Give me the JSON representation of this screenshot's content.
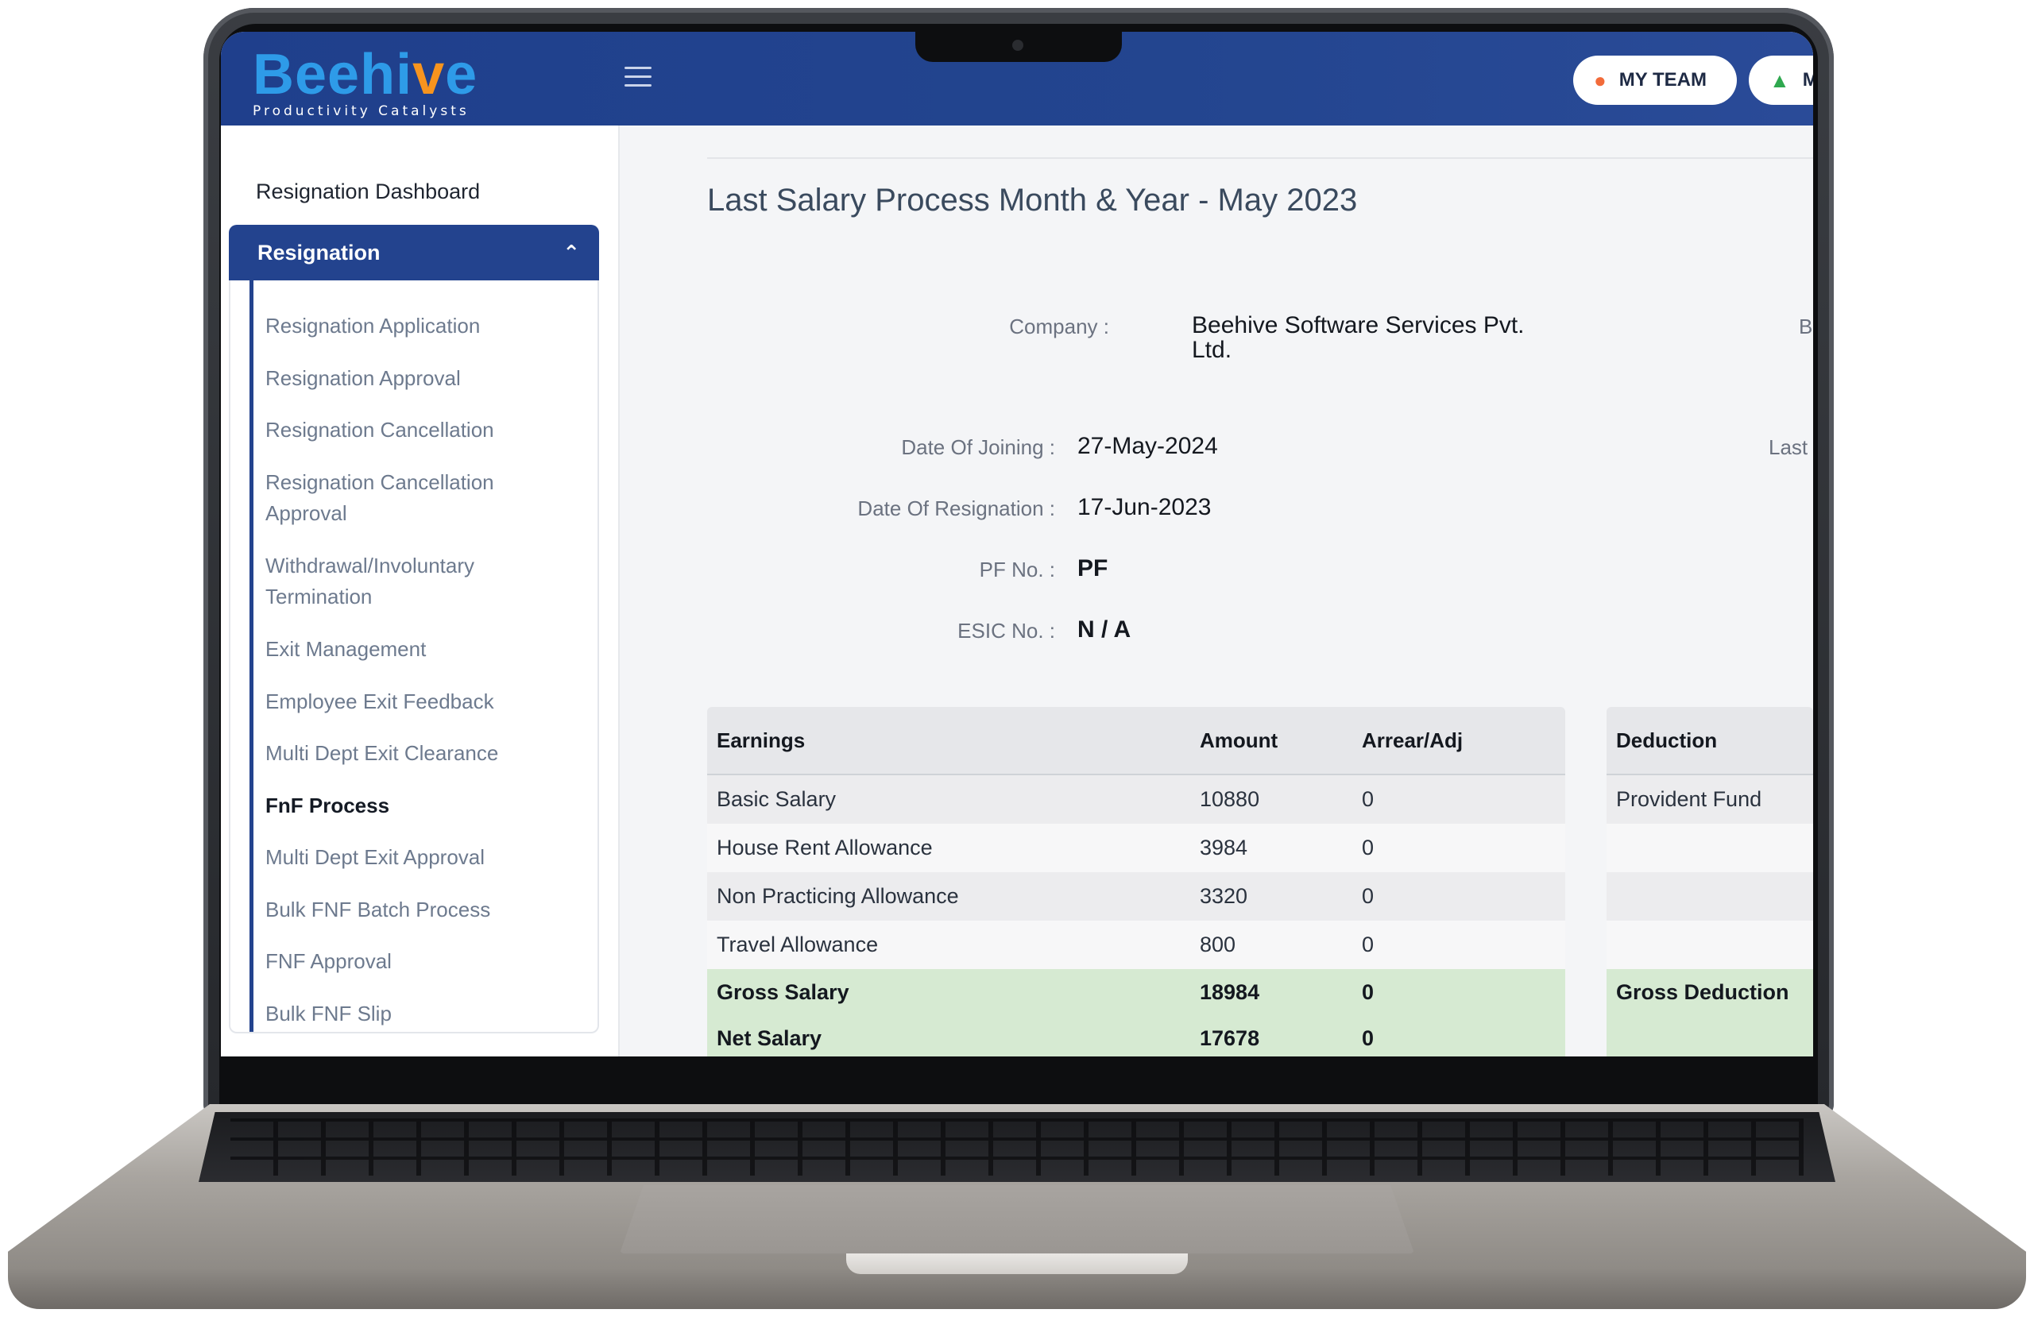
{
  "header": {
    "logo_main": "Beehi",
    "logo_accent": "v",
    "logo_end": "e",
    "logo_tagline": "Productivity Catalysts",
    "my_team_label": "MY TEAM",
    "me_label": "M"
  },
  "sidebar": {
    "dashboard_label": "Resignation Dashboard",
    "section_label": "Resignation",
    "items": [
      {
        "label": "Resignation Application"
      },
      {
        "label": "Resignation Approval"
      },
      {
        "label": "Resignation Cancellation"
      },
      {
        "label": "Resignation Cancellation Approval"
      },
      {
        "label": "Withdrawal/Involuntary Termination"
      },
      {
        "label": "Exit Management"
      },
      {
        "label": "Employee Exit Feedback"
      },
      {
        "label": "Multi Dept Exit Clearance"
      },
      {
        "label": "FnF Process"
      },
      {
        "label": "Multi Dept Exit Approval"
      },
      {
        "label": "Bulk FNF Batch Process"
      },
      {
        "label": "FNF Approval"
      },
      {
        "label": "Bulk FNF Slip"
      }
    ]
  },
  "main": {
    "title": "Last Salary Process Month & Year - May 2023",
    "company_label": "Company :",
    "company_value": "Beehive Software Services Pvt. Ltd.",
    "cut_right_b": "B",
    "cut_right_last": "Last",
    "doj_label": "Date Of Joining :",
    "doj_value": "27-May-2024",
    "dor_label": "Date Of Resignation :",
    "dor_value": "17-Jun-2023",
    "pf_label": "PF No. :",
    "pf_value": "PF",
    "esic_label": "ESIC No. :",
    "esic_value": "N / A"
  },
  "earnings": {
    "headers": [
      "Earnings",
      "Amount",
      "Arrear/Adj"
    ],
    "rows": [
      [
        "Basic Salary",
        "10880",
        "0"
      ],
      [
        "House Rent Allowance",
        "3984",
        "0"
      ],
      [
        "Non Practicing Allowance",
        "3320",
        "0"
      ],
      [
        "Travel Allowance",
        "800",
        "0"
      ]
    ],
    "gross": [
      "Gross Salary",
      "18984",
      "0"
    ],
    "net": [
      "Net Salary",
      "17678",
      "0"
    ]
  },
  "deductions": {
    "header": "Deduction",
    "rows": [
      "Provident Fund",
      "",
      "",
      ""
    ],
    "gross": "Gross Deduction"
  }
}
